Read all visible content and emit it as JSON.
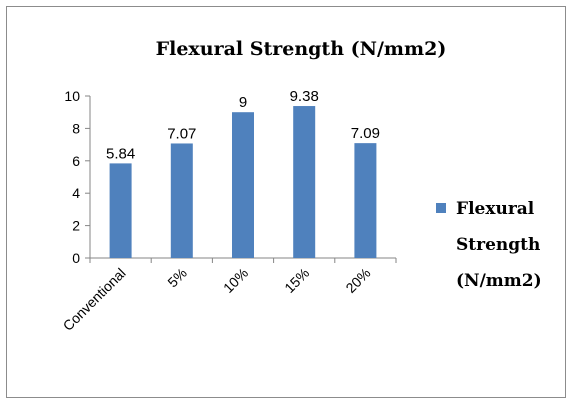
{
  "chart_data": {
    "type": "bar",
    "title": "Flexural Strength (N/mm2)",
    "categories": [
      "Conventional",
      "5%",
      "10%",
      "15%",
      "20%"
    ],
    "series": [
      {
        "name": "Flexural Strength (N/mm2)",
        "values": [
          5.84,
          7.07,
          9,
          9.38,
          7.09
        ]
      }
    ],
    "data_labels": [
      "5.84",
      "7.07",
      "9",
      "9.38",
      "7.09"
    ],
    "yticks": [
      "0",
      "2",
      "4",
      "6",
      "8",
      "10"
    ],
    "ylim": [
      0,
      10
    ],
    "xlabel": "",
    "ylabel": "",
    "grid": false,
    "legend_position": "right",
    "legend_lines": [
      "Flexural",
      "Strength",
      "(N/mm2)"
    ],
    "bar_color": "#4f81bd"
  }
}
